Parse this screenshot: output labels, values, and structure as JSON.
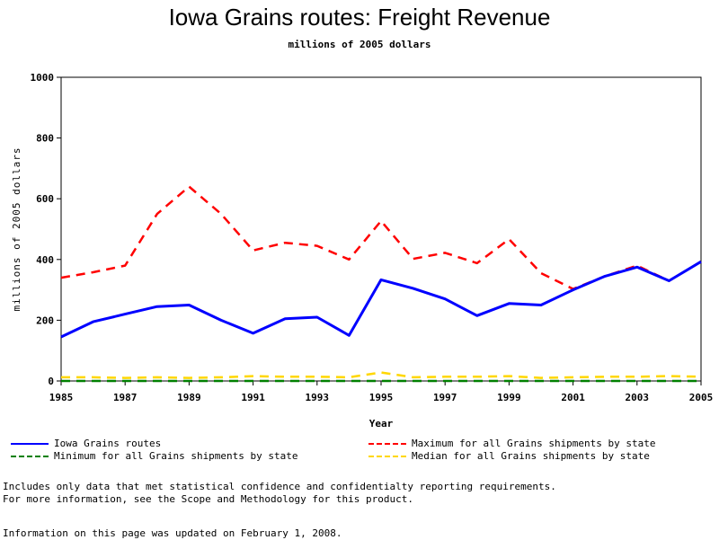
{
  "page": {
    "footnote_line1": "Includes only data that met statistical confidence and confidentialty reporting requirements.",
    "footnote_line2": "For more information, see the Scope and Methodology for this product.",
    "updated": "Information on this page was updated on February 1, 2008."
  },
  "chart_data": {
    "type": "line",
    "title": "Iowa Grains routes: Freight Revenue",
    "subtitle": "millions of 2005 dollars",
    "xlabel": "Year",
    "ylabel": "millions of 2005 dollars",
    "xlim": [
      1985,
      2005
    ],
    "ylim": [
      0,
      1000
    ],
    "x_ticks": [
      "1985",
      "1987",
      "1989",
      "1991",
      "1993",
      "1995",
      "1997",
      "1999",
      "2001",
      "2003",
      "2005"
    ],
    "y_ticks": [
      "0",
      "200",
      "400",
      "600",
      "800",
      "1000"
    ],
    "grid": false,
    "legend_position": "bottom",
    "x": [
      1985,
      1986,
      1987,
      1988,
      1989,
      1990,
      1991,
      1992,
      1993,
      1994,
      1995,
      1996,
      1997,
      1998,
      1999,
      2000,
      2001,
      2002,
      2003,
      2004,
      2005
    ],
    "series": [
      {
        "name": "Iowa Grains routes",
        "color": "#0000ff",
        "style": "solid",
        "values": [
          145,
          195,
          220,
          245,
          250,
          200,
          157,
          205,
          210,
          150,
          333,
          305,
          270,
          215,
          255,
          250,
          300,
          345,
          375,
          330,
          393
        ]
      },
      {
        "name": "Maximum for all Grains shipments by state",
        "color": "#ff0000",
        "style": "dashed",
        "values": [
          340,
          358,
          380,
          550,
          640,
          550,
          430,
          455,
          445,
          400,
          527,
          402,
          422,
          388,
          467,
          355,
          303,
          345,
          380,
          330,
          393
        ]
      },
      {
        "name": "Minimum for all Grains shipments by state",
        "color": "#008000",
        "style": "dashed",
        "values": [
          0,
          0,
          0,
          0,
          0,
          0,
          0,
          0,
          0,
          0,
          0,
          0,
          0,
          0,
          0,
          0,
          0,
          0,
          0,
          0,
          0
        ]
      },
      {
        "name": "Median for all Grains shipments by state",
        "color": "#ffd700",
        "style": "dashed",
        "values": [
          12,
          12,
          10,
          12,
          10,
          12,
          16,
          14,
          14,
          12,
          28,
          12,
          14,
          14,
          16,
          10,
          12,
          14,
          14,
          16,
          14
        ]
      }
    ]
  }
}
